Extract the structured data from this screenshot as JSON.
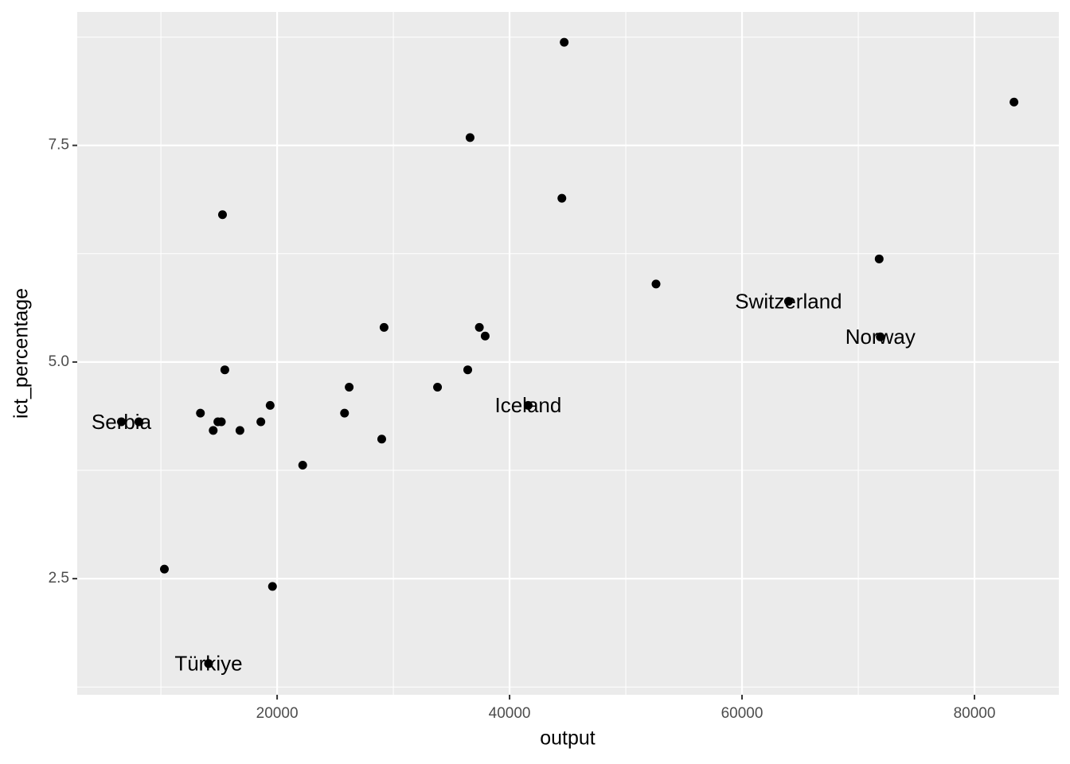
{
  "chart_data": {
    "type": "scatter",
    "x_label": "output",
    "y_label": "ict_percentage",
    "xlim": [
      2800,
      87260
    ],
    "ylim": [
      1.16,
      9.04
    ],
    "xticks": [
      20000,
      40000,
      60000,
      80000
    ],
    "yticks": [
      2.5,
      5.0,
      7.5
    ],
    "xminor": [
      10000,
      30000,
      50000,
      70000
    ],
    "yminor": [
      1.25,
      3.75,
      6.25,
      8.75
    ],
    "grid": true,
    "color": "#000000",
    "background": "#ebebeb",
    "series": [
      {
        "x": [
          44700,
          83400,
          36600,
          44500,
          15300,
          71800,
          52600,
          64000,
          71900,
          29200,
          37400,
          37900,
          15500,
          36400,
          26200,
          33800,
          41600,
          19400,
          13400,
          25800,
          6600,
          8100,
          14900,
          15200,
          18600,
          14500,
          16800,
          29000,
          22200,
          10300,
          19600,
          14100
        ],
        "values": [
          8.69,
          8.0,
          7.59,
          6.89,
          6.7,
          6.19,
          5.9,
          5.7,
          5.29,
          5.4,
          5.4,
          5.3,
          4.91,
          4.91,
          4.71,
          4.71,
          4.5,
          4.5,
          4.41,
          4.41,
          4.31,
          4.31,
          4.31,
          4.31,
          4.31,
          4.21,
          4.21,
          4.11,
          3.81,
          2.61,
          2.41,
          1.52
        ],
        "point_labels": [
          null,
          null,
          null,
          null,
          null,
          null,
          null,
          "Switzerland",
          "Norway",
          null,
          null,
          null,
          null,
          null,
          null,
          null,
          "Iceland",
          null,
          null,
          null,
          "Serbia",
          null,
          null,
          null,
          null,
          null,
          null,
          null,
          null,
          null,
          null,
          "Türkiye"
        ]
      }
    ]
  }
}
